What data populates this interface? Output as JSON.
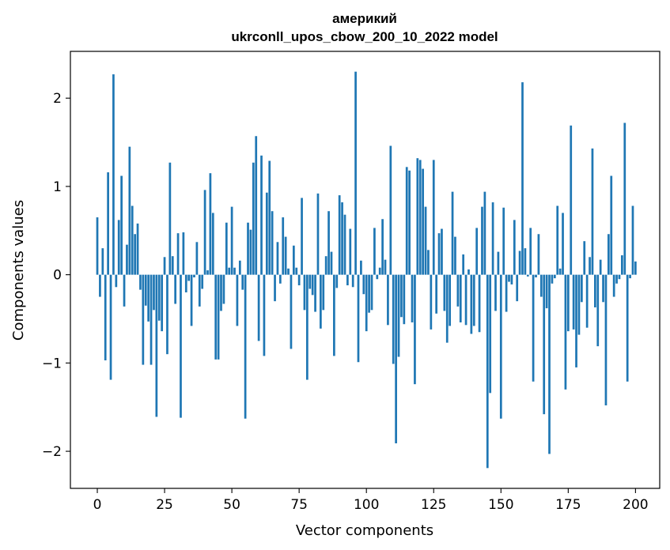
{
  "chart_data": {
    "type": "bar",
    "title_line1": "америкий",
    "title_line2": "ukrconll_upos_cbow_200_10_2022 model",
    "xlabel": "Vector components",
    "ylabel": "Components values",
    "xlim": [
      -10,
      209
    ],
    "ylim": [
      -2.42,
      2.53
    ],
    "xticks": [
      0,
      25,
      50,
      75,
      100,
      125,
      150,
      175,
      200
    ],
    "yticks": [
      -2,
      -1,
      0,
      1,
      2
    ],
    "xtick_labels": [
      "0",
      "25",
      "50",
      "75",
      "100",
      "125",
      "150",
      "175",
      "200"
    ],
    "ytick_labels": [
      "−2",
      "−1",
      "0",
      "1",
      "2"
    ],
    "bar_color": "#1f77b4",
    "values": [
      0.65,
      -0.25,
      0.3,
      -0.97,
      1.16,
      -1.19,
      2.27,
      -0.14,
      0.62,
      1.12,
      -0.36,
      0.34,
      1.45,
      0.78,
      0.46,
      0.58,
      -0.17,
      -1.02,
      -0.35,
      -0.53,
      -1.02,
      -0.4,
      -1.61,
      -0.52,
      -0.64,
      0.2,
      -0.9,
      1.27,
      0.21,
      -0.33,
      0.47,
      -1.62,
      0.48,
      -0.2,
      -0.07,
      -0.58,
      -0.03,
      0.37,
      -0.36,
      -0.16,
      0.96,
      0.05,
      1.15,
      0.7,
      -0.96,
      -0.96,
      -0.41,
      -0.33,
      0.59,
      0.08,
      0.77,
      0.08,
      -0.58,
      0.16,
      -0.17,
      -1.63,
      0.59,
      0.51,
      1.27,
      1.57,
      -0.75,
      1.35,
      -0.92,
      0.93,
      1.29,
      0.72,
      -0.3,
      0.37,
      -0.1,
      0.65,
      0.43,
      0.07,
      -0.84,
      0.33,
      0.08,
      -0.12,
      0.87,
      -0.4,
      -1.19,
      -0.16,
      -0.23,
      -0.42,
      0.92,
      -0.61,
      -0.4,
      0.21,
      0.72,
      0.26,
      -0.92,
      -0.15,
      0.9,
      0.82,
      0.68,
      -0.12,
      0.52,
      -0.14,
      2.3,
      -0.99,
      0.16,
      -0.22,
      -0.64,
      -0.43,
      -0.4,
      0.53,
      -0.05,
      0.08,
      0.63,
      0.17,
      -0.57,
      1.46,
      -1.01,
      -1.91,
      -0.93,
      -0.48,
      -0.56,
      1.22,
      1.18,
      -0.54,
      -1.24,
      1.32,
      1.3,
      1.2,
      0.77,
      0.28,
      -0.62,
      1.3,
      -0.44,
      0.47,
      0.52,
      -0.41,
      -0.77,
      -0.58,
      0.94,
      0.43,
      -0.36,
      -0.54,
      0.23,
      -0.57,
      0.06,
      -0.67,
      -0.58,
      0.53,
      -0.65,
      0.77,
      0.94,
      -2.19,
      -1.34,
      0.82,
      -0.41,
      0.26,
      -1.63,
      0.76,
      -0.42,
      -0.08,
      -0.11,
      0.62,
      -0.3,
      0.27,
      2.18,
      0.3,
      -0.02,
      0.53,
      -1.21,
      -0.03,
      0.46,
      -0.25,
      -1.58,
      -0.38,
      -2.03,
      -0.1,
      -0.04,
      0.78,
      0.07,
      0.7,
      -1.3,
      -0.64,
      1.69,
      -0.62,
      -1.05,
      -0.68,
      -0.31,
      0.38,
      -0.6,
      0.2,
      1.43,
      -0.37,
      -0.81,
      0.17,
      -0.31,
      -1.48,
      0.46,
      1.12,
      -0.25,
      -0.1,
      -0.05,
      0.22,
      1.72,
      -1.21,
      -0.04,
      0.78,
      0.15
    ]
  }
}
